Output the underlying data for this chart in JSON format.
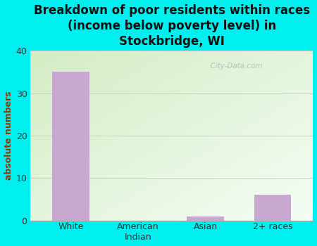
{
  "categories": [
    "White",
    "American\nIndian",
    "Asian",
    "2+ races"
  ],
  "values": [
    35,
    0,
    1,
    6
  ],
  "bar_color": "#c8a8d0",
  "title": "Breakdown of poor residents within races\n(income below poverty level) in\nStockbridge, WI",
  "ylabel": "absolute numbers",
  "ylim": [
    0,
    40
  ],
  "yticks": [
    0,
    10,
    20,
    30,
    40
  ],
  "background_color": "#00f0f0",
  "plot_bg_topleft": "#d4edc4",
  "plot_bg_right": "#f8fdf8",
  "grid_color": "#cccccc",
  "title_fontsize": 12,
  "tick_fontsize": 9,
  "ylabel_fontsize": 9,
  "ylabel_color": "#993300",
  "watermark": "  City-Data.com"
}
